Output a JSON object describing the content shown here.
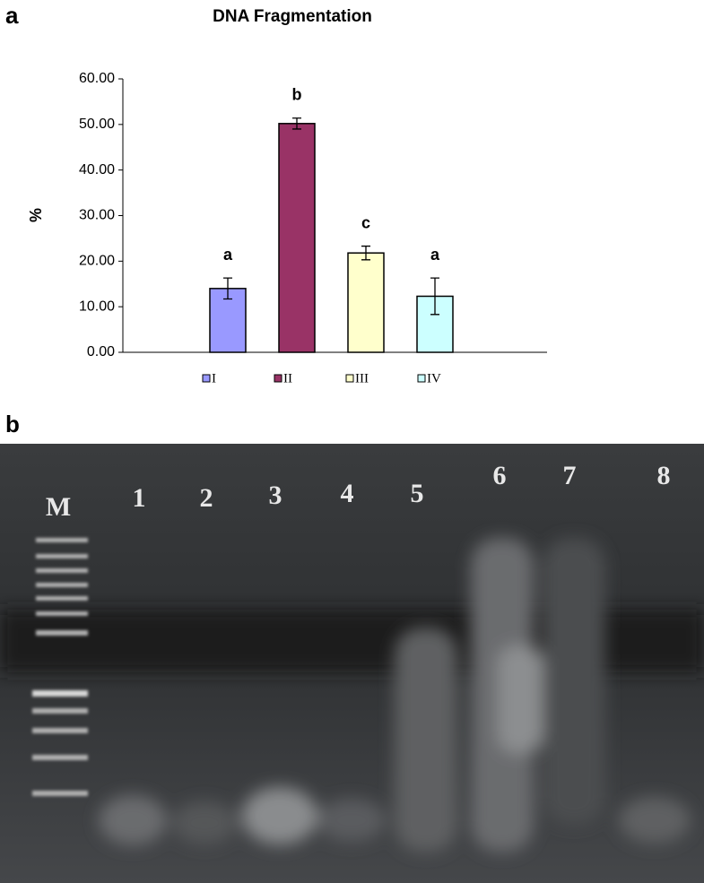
{
  "figure": {
    "panel_labels": [
      "a",
      "b"
    ],
    "gel_lanes": [
      "M",
      "1",
      "2",
      "3",
      "4",
      "5",
      "6",
      "7",
      "8"
    ]
  },
  "chart_data": {
    "type": "bar",
    "title": "DNA Fragmentation",
    "y_label": "%",
    "categories": [
      "I",
      "II",
      "III",
      "IV"
    ],
    "values": [
      14.0,
      50.2,
      21.8,
      12.3
    ],
    "errors": [
      2.3,
      1.2,
      1.5,
      4.0
    ],
    "annotations": [
      "a",
      "b",
      "c",
      "a"
    ],
    "colors": [
      "#9999ff",
      "#993366",
      "#ffffcc",
      "#ccffff"
    ],
    "ylim": [
      0,
      60
    ],
    "yticks": [
      {
        "value": 0,
        "label": "0.00"
      },
      {
        "value": 10,
        "label": "10.00"
      },
      {
        "value": 20,
        "label": "20.00"
      },
      {
        "value": 30,
        "label": "30.00"
      },
      {
        "value": 40,
        "label": "40.00"
      },
      {
        "value": 50,
        "label": "50.00"
      },
      {
        "value": 60,
        "label": "60.00"
      }
    ],
    "grid": false,
    "legend": "bottom"
  }
}
